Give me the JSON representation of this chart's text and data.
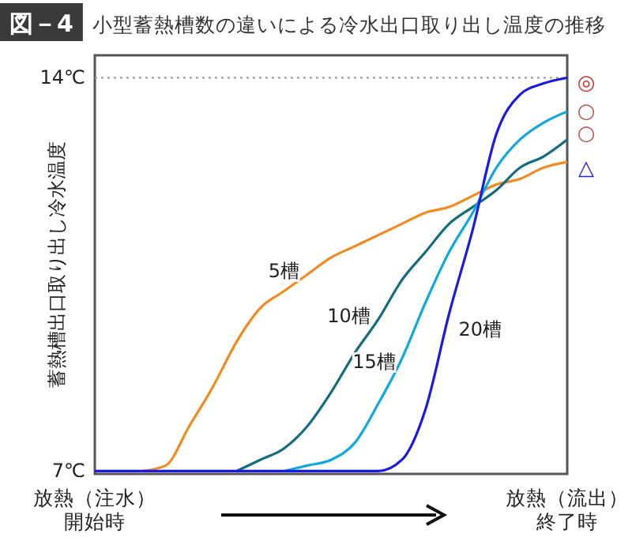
{
  "chart_data": {
    "type": "line",
    "title": "図－4 小型蓄熱槽数の違いによる冷水出口取り出し温度の推移",
    "ylabel": "蓄熱槽出口取り出し冷水温度",
    "categories": [
      "放熱（注水）開始時",
      null,
      null,
      null,
      null,
      null,
      null,
      null,
      null,
      null,
      null,
      null,
      null,
      null,
      null,
      null,
      null,
      null,
      null,
      null,
      "放熱（流出）終了時"
    ],
    "ylim": [
      6.95,
      14.4
    ],
    "yticks": [
      {
        "value": 7,
        "label": "7℃"
      },
      {
        "value": 14,
        "label": "14℃"
      }
    ],
    "series": [
      {
        "name": "5槽",
        "color": "#f28a1e",
        "values": [
          null,
          null,
          7,
          7.1,
          7.8,
          8.5,
          9.3,
          9.9,
          10.2,
          10.5,
          10.8,
          11,
          11.2,
          11.4,
          11.6,
          11.7,
          11.9,
          12.1,
          12.2,
          12.4,
          12.5
        ]
      },
      {
        "name": "10槽",
        "color": "#126c82",
        "values": [
          null,
          null,
          null,
          null,
          null,
          null,
          7,
          7.2,
          7.4,
          7.8,
          8.4,
          9.1,
          9.7,
          10.4,
          10.9,
          11.4,
          11.7,
          12,
          12.4,
          12.6,
          12.9
        ]
      },
      {
        "name": "15槽",
        "color": "#10a8e0",
        "values": [
          null,
          null,
          null,
          null,
          null,
          null,
          null,
          null,
          7,
          7.1,
          7.2,
          7.5,
          8.2,
          9,
          10,
          10.9,
          11.6,
          12.4,
          12.9,
          13.2,
          13.4
        ]
      },
      {
        "name": "20槽",
        "color": "#1a1ae6",
        "values": [
          7,
          7,
          7,
          7,
          7,
          7,
          7,
          7,
          7,
          7,
          7,
          7,
          7,
          7.2,
          8.1,
          9.8,
          11.3,
          13,
          13.7,
          13.9,
          14
        ]
      }
    ],
    "ref_lines": [
      {
        "axis": "y",
        "value": 14,
        "color": "#999999",
        "line_style": "dotted"
      }
    ],
    "annotations": [
      "◎",
      "○",
      "○",
      "△"
    ],
    "grid": false,
    "legend": false,
    "marker": "none",
    "line_style": "solid"
  }
}
